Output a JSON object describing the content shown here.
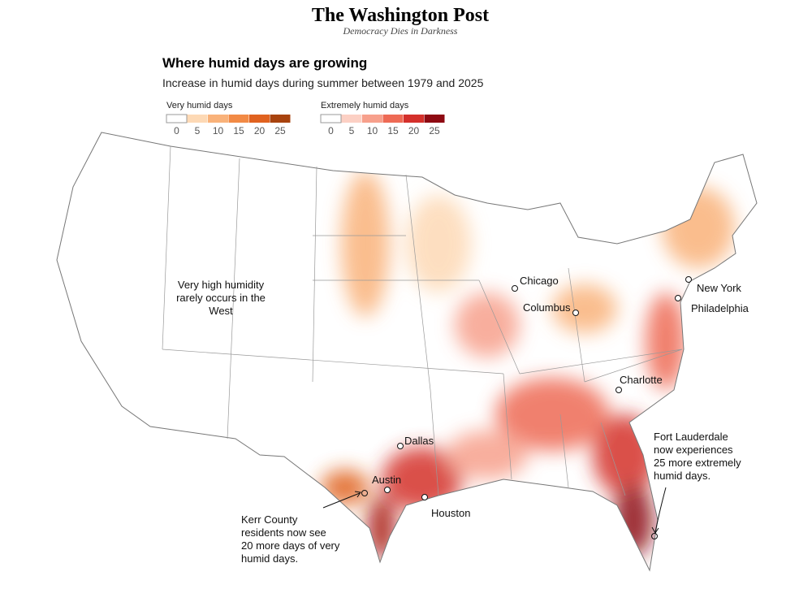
{
  "header": {
    "masthead": "The Washington Post",
    "tagline": "Democracy Dies in Darkness"
  },
  "title": "Where humid days are growing",
  "subtitle": "Increase in humid days during summer between 1979 and 2025",
  "legends": [
    {
      "name": "Very humid days",
      "ticks": [
        0,
        5,
        10,
        15,
        20,
        25
      ],
      "colors": [
        "#ffffff",
        "#fdd9b5",
        "#f9b27a",
        "#f28a45",
        "#e0621f",
        "#a8430e"
      ]
    },
    {
      "name": "Extremely humid days",
      "ticks": [
        0,
        5,
        10,
        15,
        20,
        25
      ],
      "colors": [
        "#ffffff",
        "#fcd0c4",
        "#f7a08c",
        "#ee6a55",
        "#d4302b",
        "#8e0a12"
      ]
    }
  ],
  "cities": [
    "Chicago",
    "Columbus",
    "New York",
    "Philadelphia",
    "Charlotte",
    "Dallas",
    "Austin",
    "Houston"
  ],
  "annotations": [
    {
      "lines": [
        "Very high humidity",
        "rarely occurs in the",
        "West"
      ]
    },
    {
      "lines": [
        "Kerr County",
        "residents now see",
        "20 more days of very",
        "humid days."
      ]
    },
    {
      "lines": [
        "Fort Lauderdale",
        "now experiences",
        "25 more extremely",
        "humid days."
      ]
    }
  ]
}
